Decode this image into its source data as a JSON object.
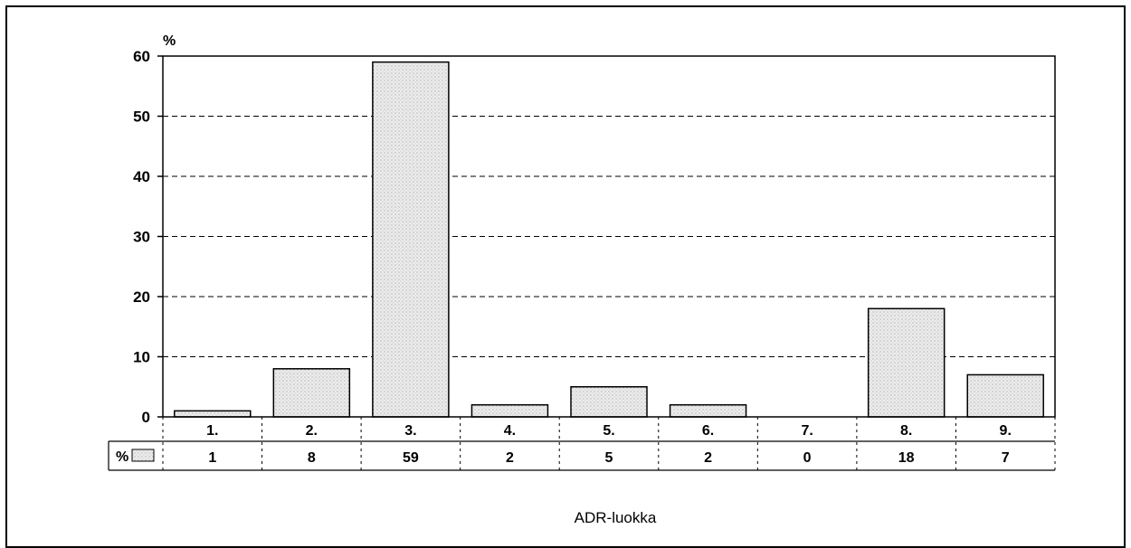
{
  "chart_data": {
    "type": "bar",
    "yunit": "%",
    "xlabel": "ADR-luokka",
    "categories": [
      "1.",
      "2.",
      "3.",
      "4.",
      "5.",
      "6.",
      "7.",
      "8.",
      "9."
    ],
    "series": [
      {
        "name": "%",
        "values": [
          1,
          8,
          59,
          2,
          5,
          2,
          0,
          18,
          7
        ]
      }
    ],
    "table_values": [
      "1",
      "8",
      "59",
      "2",
      "5",
      "2",
      "0",
      "18",
      "7"
    ],
    "ylim": [
      0,
      60
    ],
    "yticks": [
      0,
      10,
      20,
      30,
      40,
      50,
      60
    ],
    "grid": true,
    "bar_color": "#e8e8e8",
    "legend": "data-table"
  }
}
